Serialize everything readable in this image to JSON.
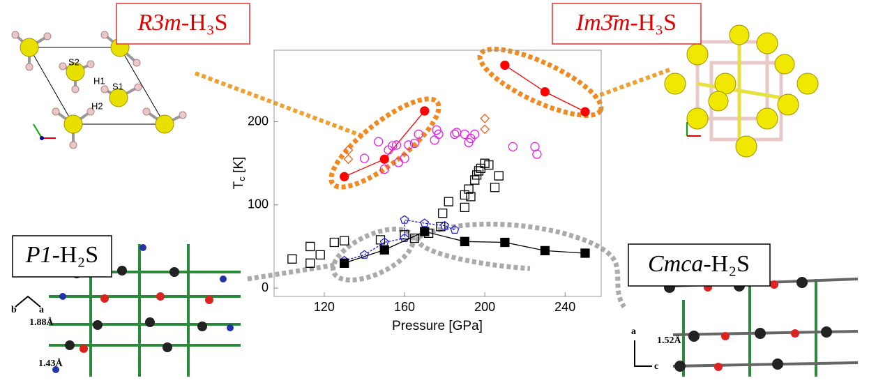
{
  "chart_data": {
    "type": "scatter",
    "xlabel": "Pressure [GPa]",
    "ylabel": {
      "base": "T",
      "sub": "c",
      "rest": " [K]"
    },
    "xlim": [
      95,
      258
    ],
    "xticks": [
      120,
      160,
      200,
      240
    ],
    "ylim": [
      -10,
      286
    ],
    "yticks": [
      0,
      100,
      200
    ],
    "series": [
      {
        "color": "#ff0000",
        "marker": "filled-circle",
        "line": "solid",
        "x": [
          130,
          150,
          170
        ],
        "values": [
          134,
          155,
          213
        ]
      },
      {
        "color": "#ff0000",
        "marker": "filled-circle",
        "line": "solid",
        "x": [
          210,
          230,
          250
        ],
        "values": [
          268,
          236,
          212
        ]
      },
      {
        "color": "#e020e0",
        "marker": "open-circle",
        "line": "none",
        "x": [
          140,
          147,
          150,
          152,
          154,
          156,
          157,
          160,
          162,
          165,
          167,
          175,
          176,
          177,
          185,
          186,
          190,
          192,
          193,
          195,
          214,
          225,
          226
        ],
        "values": [
          156,
          176,
          143,
          166,
          171,
          172,
          151,
          156,
          172,
          174,
          185,
          178,
          190,
          185,
          185,
          187,
          185,
          175,
          180,
          185,
          170,
          170,
          161
        ]
      },
      {
        "color": "#f06020",
        "marker": "open-diamond",
        "line": "none",
        "x": [
          132,
          132,
          200,
          200
        ],
        "values": [
          166,
          155,
          204,
          191
        ]
      },
      {
        "color": "#000000",
        "marker": "open-square",
        "line": "none",
        "x": [
          104,
          113,
          113,
          118,
          125,
          130,
          148,
          160,
          165,
          172,
          178,
          179,
          182,
          190,
          190,
          192,
          193,
          195,
          196,
          197,
          198,
          200,
          202,
          205,
          207
        ],
        "values": [
          35,
          30,
          50,
          40,
          55,
          57,
          58,
          64,
          60,
          66,
          74,
          90,
          104,
          97,
          112,
          119,
          110,
          130,
          136,
          141,
          144,
          150,
          148,
          121,
          135
        ]
      },
      {
        "color": "#2020d0",
        "marker": "open-pentagon",
        "line": "dashed",
        "x": [
          130,
          140,
          150,
          160,
          160,
          170,
          180,
          185
        ],
        "values": [
          33,
          40,
          55,
          60,
          82,
          78,
          75,
          70
        ]
      },
      {
        "color": "#000000",
        "marker": "filled-square",
        "line": "solid",
        "x": [
          130,
          150,
          170,
          190,
          210,
          230,
          250
        ],
        "values": [
          30,
          46,
          68,
          56,
          55,
          45,
          42
        ]
      }
    ]
  },
  "panels": {
    "r3m": {
      "label": {
        "italic": "R3m",
        "rest": "-H₃S"
      },
      "atoms": [
        "S2",
        "H1",
        "S1",
        "H2"
      ]
    },
    "im3m": {
      "label": {
        "italic": "Im3̄m",
        "rest": "-H₃S"
      }
    },
    "p1": {
      "label": {
        "italic": "P1",
        "rest": "-H₂S"
      },
      "axes": [
        "b",
        "a"
      ],
      "distances": [
        "1.88Å",
        "1.43Å"
      ]
    },
    "cmca": {
      "label": {
        "italic": "Cmca",
        "rest": "-H₂S"
      },
      "axes": [
        "a",
        "c"
      ],
      "distances": [
        "1.52Å"
      ]
    }
  }
}
